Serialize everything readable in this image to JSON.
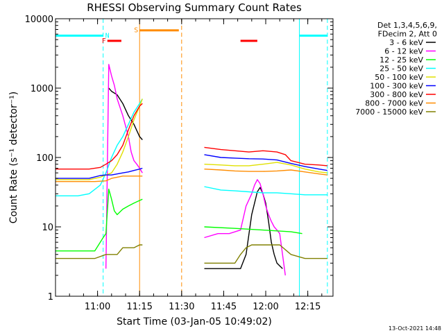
{
  "chart_data": {
    "type": "line",
    "title": "RHESSI Observing Summary Count Rates",
    "xlabel": "Start Time (03-Jan-05 10:49:02)",
    "ylabel": "Count Rate (s⁻¹ detector⁻¹)",
    "y_scale": "log",
    "ylim": [
      1,
      10000
    ],
    "xlim_minutes_after_start": [
      -4,
      95
    ],
    "x_ticks": [
      {
        "label": "11:00",
        "minutes": 11
      },
      {
        "label": "11:15",
        "minutes": 26
      },
      {
        "label": "11:30",
        "minutes": 41
      },
      {
        "label": "11:45",
        "minutes": 56
      },
      {
        "label": "12:00",
        "minutes": 71
      },
      {
        "label": "12:15",
        "minutes": 86
      }
    ],
    "y_ticks": [
      {
        "label": "1",
        "value": 1
      },
      {
        "label": "10",
        "value": 10
      },
      {
        "label": "100",
        "value": 100
      },
      {
        "label": "1000",
        "value": 1000
      },
      {
        "label": "10000",
        "value": 10000
      }
    ],
    "legend": {
      "placement": "top-right",
      "header": [
        "Det 1,3,4,5,6,9,",
        "FDecim 2, Att 0"
      ]
    },
    "series": [
      {
        "name": "3 - 6 keV",
        "color": "#000000",
        "x": [
          6,
          14,
          15,
          16,
          18,
          20,
          22,
          24,
          26,
          27,
          27.1,
          49,
          49.1,
          54,
          58,
          62,
          64,
          66,
          67,
          68,
          69,
          70,
          71,
          72,
          73,
          74,
          75,
          77
        ],
        "y": [
          null,
          null,
          1000,
          900,
          800,
          600,
          400,
          300,
          200,
          180,
          null,
          null,
          2.5,
          2.5,
          2.5,
          2.5,
          4,
          15,
          22,
          32,
          37,
          30,
          22,
          12,
          6,
          4,
          3,
          2.5
        ]
      },
      {
        "name": "6 - 12 keV",
        "color": "#ff00ff",
        "x": [
          6,
          13,
          14,
          15,
          16,
          17,
          18,
          20,
          22,
          23,
          24,
          25,
          26,
          27,
          27.1,
          49,
          49.1,
          54,
          58,
          62,
          64,
          66,
          67,
          68,
          69,
          70,
          71,
          72,
          73,
          74,
          75,
          76,
          78
        ],
        "y": [
          null,
          null,
          2.5,
          2200,
          1500,
          1100,
          700,
          400,
          200,
          120,
          90,
          80,
          70,
          60,
          null,
          null,
          7,
          8,
          8,
          9,
          20,
          30,
          40,
          48,
          42,
          30,
          20,
          15,
          12,
          10,
          9,
          8,
          2
        ]
      },
      {
        "name": "12 - 25 keV",
        "color": "#00ff00",
        "x": [
          -4,
          10,
          13,
          14,
          15,
          16,
          17,
          18,
          20,
          22,
          24,
          26,
          27,
          27.1,
          49,
          49.1,
          60,
          70,
          80,
          84
        ],
        "y": [
          4.5,
          4.5,
          7,
          8,
          35,
          25,
          17,
          15,
          18,
          20,
          22,
          24,
          25,
          null,
          null,
          10,
          9.5,
          9,
          8.5,
          8
        ]
      },
      {
        "name": "25 - 50 keV",
        "color": "#00ffff",
        "x": [
          -4,
          4,
          8,
          12,
          14,
          16,
          18,
          20,
          22,
          24,
          26,
          27,
          27.1,
          49,
          49.1,
          55,
          60,
          65,
          70,
          75,
          80,
          85,
          90,
          93
        ],
        "y": [
          28,
          28,
          30,
          40,
          60,
          100,
          150,
          200,
          300,
          450,
          600,
          700,
          null,
          null,
          38,
          34,
          33,
          32,
          31,
          31,
          30,
          29,
          29,
          29
        ]
      },
      {
        "name": "50 - 100 keV",
        "color": "#e0e000",
        "x": [
          -4,
          8,
          12,
          14,
          16,
          18,
          20,
          22,
          24,
          26,
          27,
          27.1,
          49,
          49.1,
          55,
          60,
          65,
          70,
          75,
          80,
          85,
          90,
          93
        ],
        "y": [
          48,
          48,
          52,
          56,
          60,
          80,
          120,
          200,
          350,
          550,
          700,
          null,
          null,
          80,
          78,
          76,
          76,
          80,
          85,
          78,
          68,
          62,
          60
        ]
      },
      {
        "name": "100 - 300 keV",
        "color": "#0000ff",
        "x": [
          -4,
          8,
          12,
          14,
          16,
          18,
          20,
          22,
          24,
          26,
          27,
          27.1,
          49,
          49.1,
          55,
          60,
          65,
          70,
          75,
          80,
          85,
          90,
          93
        ],
        "y": [
          50,
          50,
          55,
          56,
          56,
          58,
          60,
          62,
          65,
          68,
          70,
          null,
          null,
          110,
          100,
          98,
          96,
          95,
          92,
          82,
          74,
          68,
          65
        ]
      },
      {
        "name": "300 - 800 keV",
        "color": "#ff0000",
        "x": [
          -4,
          8,
          12,
          14,
          16,
          18,
          20,
          22,
          24,
          26,
          27,
          27.1,
          49,
          49.1,
          55,
          60,
          65,
          70,
          75,
          78,
          80,
          85,
          90,
          93
        ],
        "y": [
          68,
          68,
          72,
          80,
          90,
          110,
          150,
          250,
          400,
          550,
          600,
          null,
          null,
          140,
          130,
          125,
          120,
          125,
          120,
          110,
          90,
          80,
          78,
          76
        ]
      },
      {
        "name": "800 - 7000 keV",
        "color": "#ff8c00",
        "x": [
          -4,
          10,
          14,
          16,
          18,
          20,
          22,
          24,
          26,
          27,
          27.1,
          49,
          49.1,
          55,
          60,
          65,
          70,
          75,
          80,
          85,
          90,
          93
        ],
        "y": [
          45,
          45,
          46,
          50,
          52,
          54,
          54,
          54,
          54,
          54,
          null,
          null,
          68,
          66,
          64,
          63,
          63,
          64,
          66,
          62,
          58,
          56
        ]
      },
      {
        "name": "7000 - 15000 keV",
        "color": "#808000",
        "x": [
          -4,
          10,
          14,
          16,
          18,
          20,
          22,
          24,
          26,
          27,
          27.1,
          49,
          49.1,
          55,
          60,
          62,
          64,
          66,
          68,
          72,
          76,
          80,
          85,
          90,
          93
        ],
        "y": [
          3.5,
          3.5,
          4,
          4,
          4,
          5,
          5,
          5,
          5.5,
          5.5,
          null,
          null,
          3,
          3,
          3,
          4,
          5,
          5.5,
          5.5,
          5.5,
          5.5,
          4,
          3.5,
          3.5,
          3.5
        ]
      }
    ],
    "state_bars": [
      {
        "label": "",
        "color": "#00ffff",
        "x0": -4,
        "x1": 13,
        "y": 5700
      },
      {
        "label": "N",
        "color": "#00ffff",
        "x0": 13,
        "x1": 13,
        "y": 5700
      },
      {
        "label": "F",
        "color": "#ff0000",
        "x0": 14.5,
        "x1": 19.5,
        "y": 4800
      },
      {
        "label": "S",
        "color": "#ff8c00",
        "x0": 26,
        "x1": 40,
        "y": 6800
      },
      {
        "label": "",
        "color": "#ff0000",
        "x0": 62,
        "x1": 68,
        "y": 4800
      },
      {
        "label": "",
        "color": "#00ffff",
        "x0": 83,
        "x1": 93,
        "y": 5700
      }
    ],
    "vlines": [
      {
        "x": -4,
        "color": "#00ffff",
        "dashed": false
      },
      {
        "x": 13,
        "color": "#00ffff",
        "dashed": true
      },
      {
        "x": 26,
        "color": "#ff8c00",
        "dashed": false
      },
      {
        "x": 41,
        "color": "#ff8c00",
        "dashed": true
      },
      {
        "x": 83,
        "color": "#00ffff",
        "dashed": false
      },
      {
        "x": 93,
        "color": "#00ffff",
        "dashed": true
      }
    ],
    "footer_date": "13-Oct-2021 14:48"
  }
}
